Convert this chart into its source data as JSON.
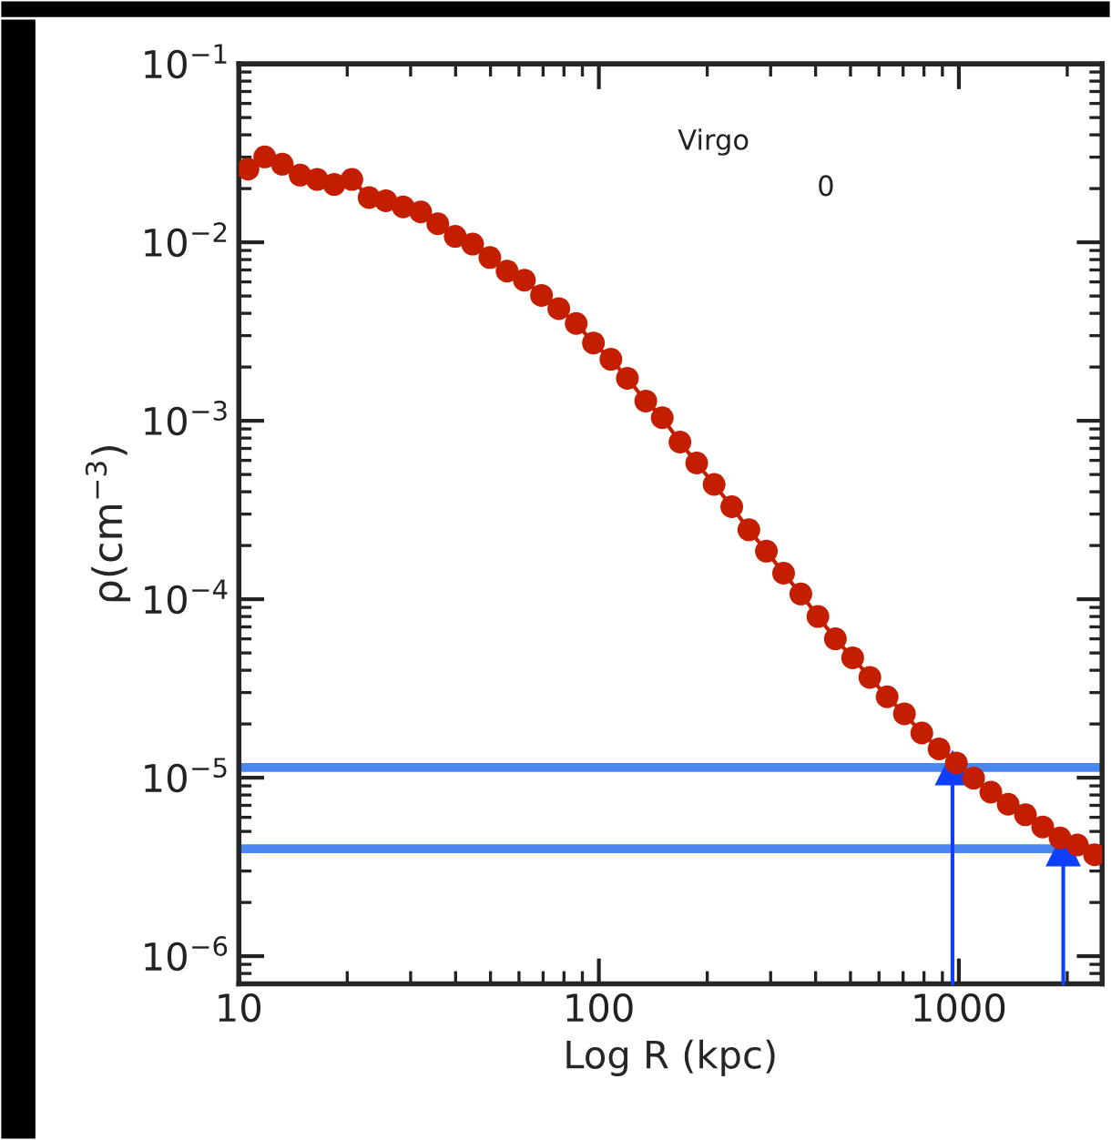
{
  "chart_data": {
    "type": "line",
    "xlabel": "Log R (kpc)",
    "ylabel": "ρ(cm$^{−3}$)",
    "annotations": [
      "Virgo",
      "0"
    ],
    "log": "xy",
    "xlim": [
      10,
      2500
    ],
    "ylim": [
      7e-07,
      0.1
    ],
    "xticks": [
      10,
      100,
      1000
    ],
    "yticks": [
      {
        "value": 1e-06,
        "label": "10$^{−6}$"
      },
      {
        "value": 1e-05,
        "label": "10$^{−5}$"
      },
      {
        "value": 0.0001,
        "label": "10$^{−4}$"
      },
      {
        "value": 0.001,
        "label": "10$^{−3}$"
      },
      {
        "value": 0.01,
        "label": "10$^{−2}$"
      },
      {
        "value": 0.1,
        "label": "10$^{−1}$"
      }
    ],
    "marker": "circle",
    "line_style": "solid",
    "ref_lines": [
      {
        "axis": "y",
        "value": 1.14e-05,
        "label": null,
        "color": "#4a86f0"
      },
      {
        "axis": "y",
        "value": 4e-06,
        "label": null,
        "color": "#4a86f0"
      }
    ],
    "series": [
      {
        "type": "line",
        "color": "#1040ff",
        "marker": "triangle",
        "x": [
          960,
          960
        ],
        "values": [
          7e-07,
          1.14e-05
        ]
      },
      {
        "type": "line",
        "color": "#1040ff",
        "marker": "triangle",
        "x": [
          1950,
          1950
        ],
        "values": [
          7e-07,
          4e-06
        ]
      },
      {
        "color": "#c41e00",
        "x": [
          10.6,
          11.8,
          13.2,
          14.8,
          16.5,
          18.4,
          20.6,
          23.0,
          25.6,
          28.6,
          32.0,
          35.7,
          39.9,
          44.6,
          49.8,
          55.6,
          62.1,
          69.3,
          77.4,
          86.5,
          96.6,
          108,
          120,
          135,
          150,
          168,
          187,
          209,
          234,
          261,
          292,
          326,
          364,
          406,
          454,
          507,
          566,
          632,
          706,
          789,
          881,
          984,
          1099,
          1227,
          1371,
          1531,
          1710,
          1910,
          2133,
          2382
        ],
        "values": [
          0.0257,
          0.0301,
          0.0274,
          0.0238,
          0.0225,
          0.0211,
          0.0225,
          0.0178,
          0.0171,
          0.0158,
          0.0148,
          0.0127,
          0.0108,
          0.00977,
          0.00822,
          0.0069,
          0.00614,
          0.00504,
          0.00425,
          0.00351,
          0.00273,
          0.00221,
          0.00173,
          0.00129,
          0.00104,
          0.00076,
          0.00058,
          0.00044,
          0.00033,
          0.000245,
          0.000186,
          0.00014,
          0.000107,
          8e-05,
          6e-05,
          4.7e-05,
          3.65e-05,
          2.84e-05,
          2.28e-05,
          1.78e-05,
          1.45e-05,
          1.21e-05,
          9.95e-06,
          8.3e-06,
          7.1e-06,
          6.2e-06,
          5.3e-06,
          4.6e-06,
          4.2e-06,
          3.7e-06
        ]
      }
    ]
  }
}
